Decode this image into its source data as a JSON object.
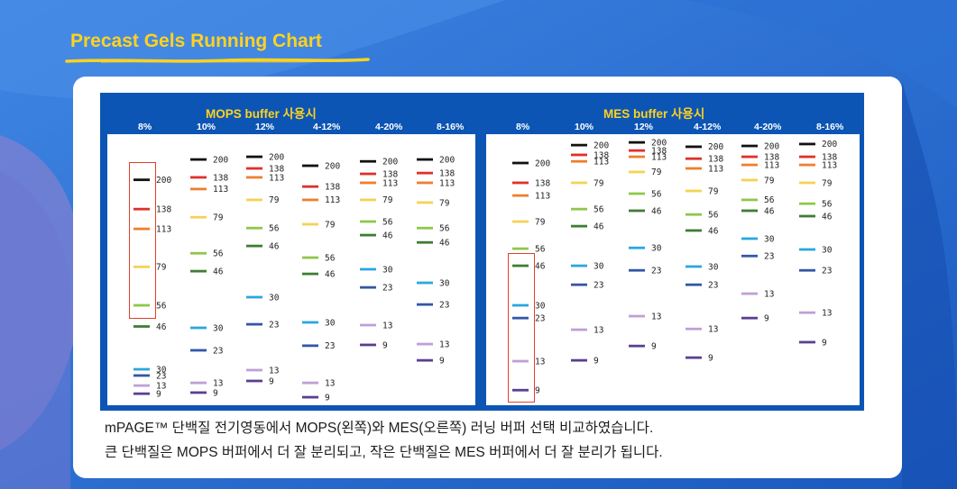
{
  "title": "Precast Gels Running Chart",
  "colors": {
    "title": "#ffd21f",
    "band_200": "#111111",
    "band_138": "#e0302a",
    "band_113": "#ee7f2e",
    "band_79": "#f4d354",
    "band_56": "#8fc74a",
    "band_46": "#3f7c34",
    "band_30": "#2aa7de",
    "band_23": "#3356a8",
    "band_13": "#bfa0d6",
    "band_9": "#5a3f91",
    "highlight": "#e2402a"
  },
  "description": {
    "line1": "mPAGE™ 단백질 전기영동에서 MOPS(왼쪽)와 MES(오른쪽) 러닝 버퍼 선택 비교하였습니다.",
    "line2": "큰 단백질은 MOPS 버퍼에서 더 잘 분리되고, 작은 단백질은 MES 버퍼에서 더 잘 분리가 됩니다."
  },
  "chart_data": [
    {
      "type": "table",
      "title": "MOPS buffer 사용시",
      "highlighted_lane": "8%",
      "lanes": [
        {
          "label": "8%",
          "bands": [
            {
              "mw": 200,
              "pos": 0.168
            },
            {
              "mw": 138,
              "pos": 0.276
            },
            {
              "mw": 113,
              "pos": 0.349
            },
            {
              "mw": 79,
              "pos": 0.489
            },
            {
              "mw": 56,
              "pos": 0.631
            },
            {
              "mw": 46,
              "pos": 0.709
            },
            {
              "mw": 30,
              "pos": 0.867
            },
            {
              "mw": 23,
              "pos": 0.89
            },
            {
              "mw": 13,
              "pos": 0.927
            },
            {
              "mw": 9,
              "pos": 0.957
            }
          ]
        },
        {
          "label": "10%",
          "bands": [
            {
              "mw": 200,
              "pos": 0.093
            },
            {
              "mw": 138,
              "pos": 0.159
            },
            {
              "mw": 113,
              "pos": 0.202
            },
            {
              "mw": 79,
              "pos": 0.306
            },
            {
              "mw": 56,
              "pos": 0.439
            },
            {
              "mw": 46,
              "pos": 0.505
            },
            {
              "mw": 30,
              "pos": 0.714
            },
            {
              "mw": 23,
              "pos": 0.797
            },
            {
              "mw": 13,
              "pos": 0.917
            },
            {
              "mw": 9,
              "pos": 0.953
            }
          ]
        },
        {
          "label": "12%",
          "bands": [
            {
              "mw": 200,
              "pos": 0.083
            },
            {
              "mw": 138,
              "pos": 0.126
            },
            {
              "mw": 113,
              "pos": 0.159
            },
            {
              "mw": 79,
              "pos": 0.242
            },
            {
              "mw": 56,
              "pos": 0.346
            },
            {
              "mw": 46,
              "pos": 0.412
            },
            {
              "mw": 30,
              "pos": 0.601
            },
            {
              "mw": 23,
              "pos": 0.701
            },
            {
              "mw": 13,
              "pos": 0.87
            },
            {
              "mw": 9,
              "pos": 0.91
            }
          ]
        },
        {
          "label": "4-12%",
          "bands": [
            {
              "mw": 200,
              "pos": 0.116
            },
            {
              "mw": 138,
              "pos": 0.193
            },
            {
              "mw": 113,
              "pos": 0.242
            },
            {
              "mw": 79,
              "pos": 0.332
            },
            {
              "mw": 56,
              "pos": 0.455
            },
            {
              "mw": 46,
              "pos": 0.515
            },
            {
              "mw": 30,
              "pos": 0.694
            },
            {
              "mw": 23,
              "pos": 0.78
            },
            {
              "mw": 13,
              "pos": 0.917
            },
            {
              "mw": 9,
              "pos": 0.97
            }
          ]
        },
        {
          "label": "4-20%",
          "bands": [
            {
              "mw": 200,
              "pos": 0.1
            },
            {
              "mw": 138,
              "pos": 0.146
            },
            {
              "mw": 113,
              "pos": 0.179
            },
            {
              "mw": 79,
              "pos": 0.242
            },
            {
              "mw": 56,
              "pos": 0.322
            },
            {
              "mw": 46,
              "pos": 0.372
            },
            {
              "mw": 30,
              "pos": 0.498
            },
            {
              "mw": 23,
              "pos": 0.565
            },
            {
              "mw": 13,
              "pos": 0.704
            },
            {
              "mw": 9,
              "pos": 0.777
            }
          ]
        },
        {
          "label": "8-16%",
          "bands": [
            {
              "mw": 200,
              "pos": 0.093
            },
            {
              "mw": 138,
              "pos": 0.143
            },
            {
              "mw": 113,
              "pos": 0.179
            },
            {
              "mw": 79,
              "pos": 0.252
            },
            {
              "mw": 56,
              "pos": 0.346
            },
            {
              "mw": 46,
              "pos": 0.399
            },
            {
              "mw": 30,
              "pos": 0.548
            },
            {
              "mw": 23,
              "pos": 0.628
            },
            {
              "mw": 13,
              "pos": 0.774
            },
            {
              "mw": 9,
              "pos": 0.834
            }
          ]
        }
      ]
    },
    {
      "type": "table",
      "title": "MES buffer 사용시",
      "highlighted_lane": "8%",
      "lanes": [
        {
          "label": "8%",
          "bands": [
            {
              "mw": 200,
              "pos": 0.106
            },
            {
              "mw": 138,
              "pos": 0.179
            },
            {
              "mw": 113,
              "pos": 0.226
            },
            {
              "mw": 79,
              "pos": 0.322
            },
            {
              "mw": 56,
              "pos": 0.422
            },
            {
              "mw": 46,
              "pos": 0.485
            },
            {
              "mw": 30,
              "pos": 0.631
            },
            {
              "mw": 23,
              "pos": 0.678
            },
            {
              "mw": 13,
              "pos": 0.837
            },
            {
              "mw": 9,
              "pos": 0.944
            }
          ]
        },
        {
          "label": "10%",
          "bands": [
            {
              "mw": 200,
              "pos": 0.04
            },
            {
              "mw": 138,
              "pos": 0.076
            },
            {
              "mw": 113,
              "pos": 0.1
            },
            {
              "mw": 79,
              "pos": 0.179
            },
            {
              "mw": 56,
              "pos": 0.276
            },
            {
              "mw": 46,
              "pos": 0.339
            },
            {
              "mw": 30,
              "pos": 0.485
            },
            {
              "mw": 23,
              "pos": 0.555
            },
            {
              "mw": 13,
              "pos": 0.721
            },
            {
              "mw": 9,
              "pos": 0.834
            }
          ]
        },
        {
          "label": "12%",
          "bands": [
            {
              "mw": 200,
              "pos": 0.03
            },
            {
              "mw": 138,
              "pos": 0.06
            },
            {
              "mw": 113,
              "pos": 0.083
            },
            {
              "mw": 79,
              "pos": 0.139
            },
            {
              "mw": 56,
              "pos": 0.219
            },
            {
              "mw": 46,
              "pos": 0.282
            },
            {
              "mw": 30,
              "pos": 0.419
            },
            {
              "mw": 23,
              "pos": 0.502
            },
            {
              "mw": 13,
              "pos": 0.671
            },
            {
              "mw": 9,
              "pos": 0.781
            }
          ]
        },
        {
          "label": "4-12%",
          "bands": [
            {
              "mw": 200,
              "pos": 0.046
            },
            {
              "mw": 138,
              "pos": 0.09
            },
            {
              "mw": 113,
              "pos": 0.126
            },
            {
              "mw": 79,
              "pos": 0.209
            },
            {
              "mw": 56,
              "pos": 0.296
            },
            {
              "mw": 46,
              "pos": 0.355
            },
            {
              "mw": 30,
              "pos": 0.488
            },
            {
              "mw": 23,
              "pos": 0.555
            },
            {
              "mw": 13,
              "pos": 0.718
            },
            {
              "mw": 9,
              "pos": 0.824
            }
          ]
        },
        {
          "label": "4-20%",
          "bands": [
            {
              "mw": 200,
              "pos": 0.043
            },
            {
              "mw": 138,
              "pos": 0.083
            },
            {
              "mw": 113,
              "pos": 0.113
            },
            {
              "mw": 79,
              "pos": 0.169
            },
            {
              "mw": 56,
              "pos": 0.242
            },
            {
              "mw": 46,
              "pos": 0.282
            },
            {
              "mw": 30,
              "pos": 0.385
            },
            {
              "mw": 23,
              "pos": 0.449
            },
            {
              "mw": 13,
              "pos": 0.588
            },
            {
              "mw": 9,
              "pos": 0.678
            }
          ]
        },
        {
          "label": "8-16%",
          "bands": [
            {
              "mw": 200,
              "pos": 0.036
            },
            {
              "mw": 138,
              "pos": 0.083
            },
            {
              "mw": 113,
              "pos": 0.113
            },
            {
              "mw": 79,
              "pos": 0.179
            },
            {
              "mw": 56,
              "pos": 0.256
            },
            {
              "mw": 46,
              "pos": 0.302
            },
            {
              "mw": 30,
              "pos": 0.425
            },
            {
              "mw": 23,
              "pos": 0.502
            },
            {
              "mw": 13,
              "pos": 0.658
            },
            {
              "mw": 9,
              "pos": 0.767
            }
          ]
        }
      ]
    }
  ]
}
